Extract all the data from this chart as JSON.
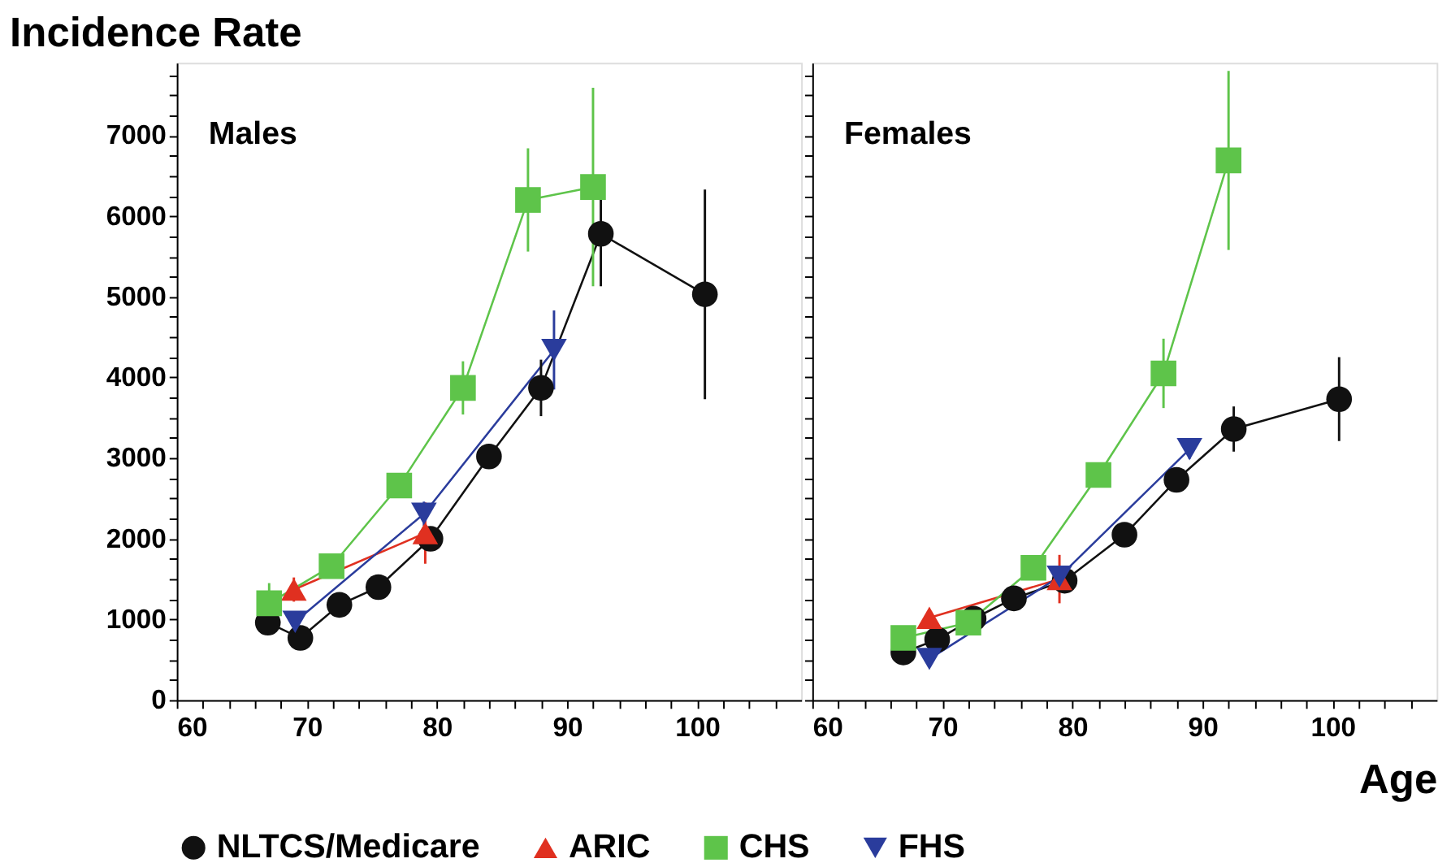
{
  "chart_data": [
    {
      "type": "line",
      "title": "Incidence Rate",
      "annotations": [
        "Males"
      ],
      "legend": "bottom",
      "grid": false,
      "marker": "circle",
      "xlim": [
        60,
        108
      ],
      "ylim": [
        0,
        7900
      ],
      "xticks": [
        60,
        {
          "value": 62,
          "label": null
        },
        {
          "value": 64,
          "label": null
        },
        {
          "value": 66,
          "label": null
        },
        {
          "value": 68,
          "label": null
        },
        70,
        {
          "value": 72,
          "label": null
        },
        {
          "value": 74,
          "label": null
        },
        {
          "value": 76,
          "label": null
        },
        {
          "value": 78,
          "label": null
        },
        80,
        {
          "value": 82,
          "label": null
        },
        {
          "value": 84,
          "label": null
        },
        {
          "value": 86,
          "label": null
        },
        {
          "value": 88,
          "label": null
        },
        90,
        {
          "value": 92,
          "label": null
        },
        {
          "value": 94,
          "label": null
        },
        {
          "value": 96,
          "label": null
        },
        {
          "value": 98,
          "label": null
        },
        100,
        {
          "value": 102,
          "label": null
        },
        {
          "value": 104,
          "label": null
        },
        {
          "value": 106,
          "label": null
        }
      ],
      "yticks": [
        0,
        {
          "value": 250,
          "label": null
        },
        {
          "value": 500,
          "label": null
        },
        {
          "value": 750,
          "label": null
        },
        1000,
        {
          "value": 1250,
          "label": null
        },
        {
          "value": 1500,
          "label": null
        },
        {
          "value": 1750,
          "label": null
        },
        2000,
        {
          "value": 2250,
          "label": null
        },
        {
          "value": 2500,
          "label": null
        },
        {
          "value": 2750,
          "label": null
        },
        3000,
        {
          "value": 3250,
          "label": null
        },
        {
          "value": 3500,
          "label": null
        },
        {
          "value": 3750,
          "label": null
        },
        4000,
        {
          "value": 4250,
          "label": null
        },
        {
          "value": 4500,
          "label": null
        },
        {
          "value": 4750,
          "label": null
        },
        5000,
        {
          "value": 5250,
          "label": null
        },
        {
          "value": 5500,
          "label": null
        },
        {
          "value": 5750,
          "label": null
        },
        6000,
        {
          "value": 6250,
          "label": null
        },
        {
          "value": 6500,
          "label": null
        },
        {
          "value": 6750,
          "label": null
        },
        7000,
        {
          "value": 7250,
          "label": null
        },
        {
          "value": 7500,
          "label": null
        },
        {
          "value": 7750,
          "label": null
        }
      ],
      "series": [
        {
          "name": "NLTCS/Medicare",
          "color": "#111111",
          "marker": "circle",
          "x": [
            67.0,
            69.5,
            72.5,
            75.5,
            79.5,
            84.0,
            88.0,
            92.6,
            100.6
          ],
          "values": [
            960,
            770,
            1180,
            1400,
            2000,
            3020,
            3870,
            5780,
            5030
          ],
          "errors": [
            null,
            null,
            null,
            null,
            150,
            150,
            350,
            650,
            1300
          ]
        },
        {
          "name": "ARIC",
          "color": "#e03020",
          "marker": "triangle-up",
          "x": [
            69.0,
            79.1
          ],
          "values": [
            1370,
            2070
          ],
          "errors": [
            150,
            380
          ]
        },
        {
          "name": "CHS",
          "color": "#5ec44a",
          "marker": "square",
          "x": [
            67.1,
            71.9,
            77.1,
            82.0,
            87.0,
            92.0
          ],
          "values": [
            1200,
            1660,
            2660,
            3870,
            6200,
            6360
          ],
          "errors": [
            250,
            100,
            150,
            330,
            640,
            1230
          ]
        },
        {
          "name": "FHS",
          "color": "#2a3c9c",
          "marker": "triangle-down",
          "x": [
            69.1,
            79.0,
            89.0
          ],
          "values": [
            970,
            2310,
            4340
          ],
          "errors": [
            null,
            150,
            490
          ]
        }
      ]
    },
    {
      "type": "line",
      "xlabel": "Age",
      "annotations": [
        "Females"
      ],
      "legend": "bottom",
      "grid": false,
      "marker": "circle",
      "tick_labels": "x",
      "xlim": [
        60,
        108
      ],
      "ylim": [
        0,
        7900
      ],
      "xticks": [
        60,
        {
          "value": 62,
          "label": null
        },
        {
          "value": 64,
          "label": null
        },
        {
          "value": 66,
          "label": null
        },
        {
          "value": 68,
          "label": null
        },
        70,
        {
          "value": 72,
          "label": null
        },
        {
          "value": 74,
          "label": null
        },
        {
          "value": 76,
          "label": null
        },
        {
          "value": 78,
          "label": null
        },
        80,
        {
          "value": 82,
          "label": null
        },
        {
          "value": 84,
          "label": null
        },
        {
          "value": 86,
          "label": null
        },
        {
          "value": 88,
          "label": null
        },
        90,
        {
          "value": 92,
          "label": null
        },
        {
          "value": 94,
          "label": null
        },
        {
          "value": 96,
          "label": null
        },
        {
          "value": 98,
          "label": null
        },
        100,
        {
          "value": 102,
          "label": null
        },
        {
          "value": 104,
          "label": null
        },
        {
          "value": 106,
          "label": null
        }
      ],
      "yticks": [
        0,
        {
          "value": 250,
          "label": null
        },
        {
          "value": 500,
          "label": null
        },
        {
          "value": 750,
          "label": null
        },
        1000,
        {
          "value": 1250,
          "label": null
        },
        {
          "value": 1500,
          "label": null
        },
        {
          "value": 1750,
          "label": null
        },
        2000,
        {
          "value": 2250,
          "label": null
        },
        {
          "value": 2500,
          "label": null
        },
        {
          "value": 2750,
          "label": null
        },
        3000,
        {
          "value": 3250,
          "label": null
        },
        {
          "value": 3500,
          "label": null
        },
        {
          "value": 3750,
          "label": null
        },
        4000,
        {
          "value": 4250,
          "label": null
        },
        {
          "value": 4500,
          "label": null
        },
        {
          "value": 4750,
          "label": null
        },
        5000,
        {
          "value": 5250,
          "label": null
        },
        {
          "value": 5500,
          "label": null
        },
        {
          "value": 5750,
          "label": null
        },
        6000,
        {
          "value": 6250,
          "label": null
        },
        {
          "value": 6500,
          "label": null
        },
        {
          "value": 6750,
          "label": null
        },
        7000,
        {
          "value": 7250,
          "label": null
        },
        {
          "value": 7500,
          "label": null
        },
        {
          "value": 7750,
          "label": null
        }
      ],
      "series": [
        {
          "name": "NLTCS/Medicare",
          "color": "#111111",
          "marker": "circle",
          "x": [
            67.0,
            69.6,
            72.4,
            75.5,
            79.4,
            84.0,
            88.0,
            92.4,
            100.5
          ],
          "values": [
            590,
            750,
            1010,
            1260,
            1480,
            2050,
            2730,
            3360,
            3730
          ],
          "errors": [
            null,
            null,
            null,
            null,
            null,
            null,
            100,
            280,
            520
          ]
        },
        {
          "name": "ARIC",
          "color": "#e03020",
          "marker": "triangle-up",
          "x": [
            69.0,
            79.0
          ],
          "values": [
            1020,
            1500
          ],
          "errors": [
            null,
            300
          ]
        },
        {
          "name": "CHS",
          "color": "#5ec44a",
          "marker": "square",
          "x": [
            67.0,
            72.0,
            77.0,
            82.0,
            87.0,
            92.0
          ],
          "values": [
            770,
            960,
            1640,
            2790,
            4050,
            6690
          ],
          "errors": [
            null,
            null,
            null,
            120,
            430,
            1110
          ]
        },
        {
          "name": "FHS",
          "color": "#2a3c9c",
          "marker": "triangle-down",
          "x": [
            69.0,
            79.0,
            89.0
          ],
          "values": [
            510,
            1530,
            3110
          ],
          "errors": [
            null,
            null,
            120
          ]
        }
      ]
    }
  ]
}
